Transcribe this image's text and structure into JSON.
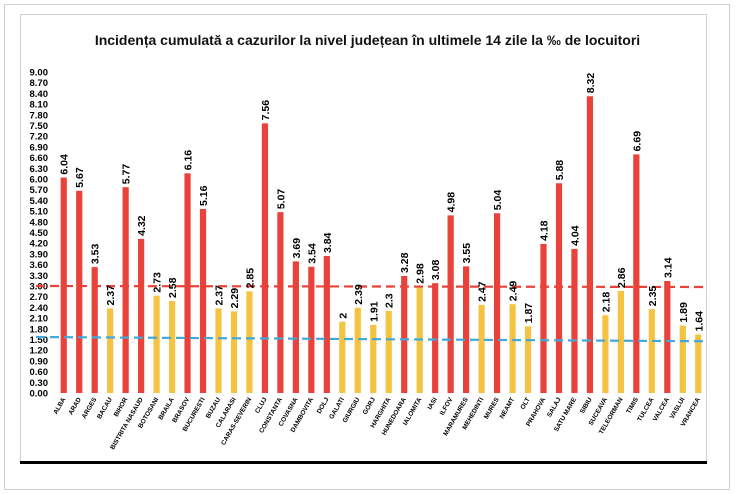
{
  "chart_data": {
    "type": "bar",
    "title": "Incidența cumulată a cazurilor la nivel județean în ultimele 14 zile la ‰ de locuitori",
    "xlabel": "",
    "ylabel": "",
    "ylim": [
      0,
      9.0
    ],
    "ytick_labels": [
      "0.00",
      "0.30",
      "0.60",
      "0.90",
      "1.20",
      "1.50",
      "1.80",
      "2.10",
      "2.40",
      "2.70",
      "3.00",
      "3.30",
      "3.60",
      "3.90",
      "4.20",
      "4.50",
      "4.80",
      "5.10",
      "5.40",
      "5.70",
      "6.00",
      "6.30",
      "6.60",
      "6.90",
      "7.20",
      "7.50",
      "7.80",
      "8.10",
      "8.40",
      "8.70",
      "9.00"
    ],
    "grid": false,
    "legend": "none",
    "categories": [
      "ALBA",
      "ARAD",
      "ARGES",
      "BACAU",
      "BIHOR",
      "BISTRITA NASAUD",
      "BOTOSANI",
      "BRAILA",
      "BRASOV",
      "BUCURESTI",
      "BUZAU",
      "CALARASI",
      "CARAS-SEVERIN",
      "CLUJ",
      "CONSTANTA",
      "COVASNA",
      "DAMBOVITA",
      "DOLJ",
      "GALATI",
      "GIURGIU",
      "GORJ",
      "HARGHITA",
      "HUNEDOARA",
      "IALOMITA",
      "IASI",
      "ILFOV",
      "MARAMURES",
      "MEHEDINTI",
      "MURES",
      "NEAMT",
      "OLT",
      "PRAHOVA",
      "SALAJ",
      "SATU MARE",
      "SIBIU",
      "SUCEAVA",
      "TELEORMAN",
      "TIMIS",
      "TULCEA",
      "VALCEA",
      "VASLUI",
      "VRANCEA"
    ],
    "values": [
      6.04,
      5.67,
      3.53,
      2.37,
      5.77,
      4.32,
      2.73,
      2.58,
      6.16,
      5.16,
      2.37,
      2.29,
      2.85,
      7.56,
      5.07,
      3.69,
      3.54,
      3.84,
      2,
      2.39,
      1.91,
      2.3,
      3.28,
      2.98,
      3.08,
      4.98,
      3.55,
      2.47,
      5.04,
      2.49,
      1.87,
      4.18,
      5.88,
      4.04,
      8.32,
      2.18,
      2.86,
      6.69,
      2.35,
      3.14,
      1.89,
      1.64
    ],
    "value_labels": [
      "6.04",
      "5.67",
      "3.53",
      "2.37",
      "5.77",
      "4.32",
      "2.73",
      "2.58",
      "6.16",
      "5.16",
      "2.37",
      "2.29",
      "2.85",
      "7.56",
      "5.07",
      "3.69",
      "3.54",
      "3.84",
      "2",
      "2.39",
      "1.91",
      "2.3",
      "3.28",
      "2.98",
      "3.08",
      "4.98",
      "3.55",
      "2.47",
      "5.04",
      "2.49",
      "1.87",
      "4.18",
      "5.88",
      "4.04",
      "8.32",
      "2.18",
      "2.86",
      "6.69",
      "2.35",
      "3.14",
      "1.89",
      "1.64"
    ],
    "thresholds": [
      {
        "value": 3.0,
        "color": "#e8423a",
        "style": "dashed"
      },
      {
        "value_start": 1.57,
        "value_end": 1.45,
        "color": "#3fa9dc",
        "style": "dashed"
      }
    ],
    "colors": {
      "high": "#e8423a",
      "medium": "#f5c242",
      "low": "#f5c242"
    }
  }
}
